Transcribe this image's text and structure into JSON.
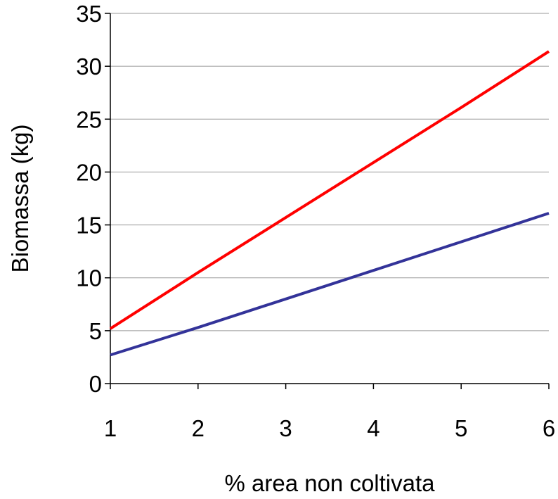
{
  "chart_data": {
    "type": "line",
    "title": "",
    "xlabel": "% area non coltivata",
    "ylabel": "Biomassa (kg)",
    "x": [
      1,
      2,
      3,
      4,
      5,
      6
    ],
    "xlim": [
      1,
      6
    ],
    "ylim": [
      0,
      35
    ],
    "x_ticks": [
      "1",
      "2",
      "3",
      "4",
      "5",
      "6"
    ],
    "y_ticks": [
      "0",
      "5",
      "10",
      "15",
      "20",
      "25",
      "30",
      "35"
    ],
    "grid": "horizontal",
    "legend": "none",
    "series": [
      {
        "color": "#ff0000",
        "values": [
          5.2,
          10.5,
          15.7,
          20.9,
          26.1,
          31.4
        ]
      },
      {
        "color": "#333399",
        "values": [
          2.7,
          5.3,
          8.0,
          10.7,
          13.4,
          16.1
        ]
      }
    ]
  }
}
